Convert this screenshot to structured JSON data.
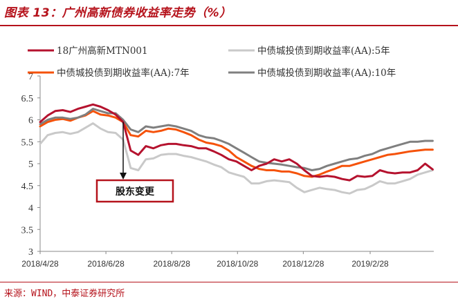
{
  "figure": {
    "title": "图表 13：广州高新债券收益率走势（%）",
    "source": "来源：WIND，中泰证券研究所"
  },
  "chart_data": {
    "type": "line",
    "title": "",
    "xlabel": "",
    "ylabel": "",
    "ylim": [
      3,
      7
    ],
    "yticks": [
      3,
      3.5,
      4,
      4.5,
      5,
      5.5,
      6,
      6.5,
      7
    ],
    "ytick_labels": [
      "3",
      "3.5",
      "4",
      "4.5",
      "5",
      "5.5",
      "6",
      "6.5",
      "7"
    ],
    "xrange": [
      "2018-04-28",
      "2019-04-28"
    ],
    "xticks": [
      "2018/4/28",
      "2018/6/28",
      "2018/8/28",
      "2018/10/28",
      "2018/12/28",
      "2019/2/28"
    ],
    "x": [
      "2018-04-28",
      "2018-05-05",
      "2018-05-12",
      "2018-05-19",
      "2018-05-26",
      "2018-06-02",
      "2018-06-09",
      "2018-06-16",
      "2018-06-23",
      "2018-06-30",
      "2018-07-07",
      "2018-07-14",
      "2018-07-21",
      "2018-07-28",
      "2018-08-04",
      "2018-08-11",
      "2018-08-18",
      "2018-08-25",
      "2018-09-01",
      "2018-09-08",
      "2018-09-15",
      "2018-09-22",
      "2018-09-29",
      "2018-10-06",
      "2018-10-13",
      "2018-10-20",
      "2018-10-27",
      "2018-11-03",
      "2018-11-10",
      "2018-11-17",
      "2018-11-24",
      "2018-12-01",
      "2018-12-08",
      "2018-12-15",
      "2018-12-22",
      "2018-12-29",
      "2019-01-05",
      "2019-01-12",
      "2019-01-19",
      "2019-01-26",
      "2019-02-02",
      "2019-02-09",
      "2019-02-16",
      "2019-02-23",
      "2019-03-02",
      "2019-03-09",
      "2019-03-16",
      "2019-03-23",
      "2019-03-30",
      "2019-04-06",
      "2019-04-13",
      "2019-04-20",
      "2019-04-27"
    ],
    "series": [
      {
        "name": "18广州高新MTN001",
        "color": "#b5122e",
        "values": [
          5.95,
          6.1,
          6.2,
          6.22,
          6.18,
          6.25,
          6.3,
          6.35,
          6.3,
          6.22,
          6.12,
          5.95,
          5.3,
          5.2,
          5.4,
          5.35,
          5.42,
          5.45,
          5.45,
          5.42,
          5.4,
          5.35,
          5.35,
          5.28,
          5.2,
          5.1,
          5.05,
          4.95,
          4.85,
          4.95,
          5.0,
          5.1,
          5.05,
          5.1,
          5.0,
          4.85,
          4.72,
          4.7,
          4.72,
          4.7,
          4.65,
          4.62,
          4.72,
          4.7,
          4.72,
          4.85,
          4.8,
          4.78,
          4.8,
          4.8,
          4.85,
          5.0,
          4.87
        ]
      },
      {
        "name": "中债城投债到期收益率(AA):5年",
        "color": "#c9c9c9",
        "values": [
          5.45,
          5.65,
          5.7,
          5.72,
          5.68,
          5.72,
          5.82,
          5.92,
          5.8,
          5.72,
          5.7,
          5.55,
          4.9,
          4.85,
          5.1,
          5.12,
          5.2,
          5.22,
          5.22,
          5.18,
          5.15,
          5.1,
          5.05,
          4.98,
          4.92,
          4.8,
          4.75,
          4.7,
          4.55,
          4.55,
          4.6,
          4.62,
          4.6,
          4.58,
          4.45,
          4.35,
          4.4,
          4.45,
          4.42,
          4.4,
          4.35,
          4.32,
          4.4,
          4.42,
          4.5,
          4.6,
          4.55,
          4.55,
          4.6,
          4.65,
          4.75,
          4.8,
          4.85
        ]
      },
      {
        "name": "中债城投债到期收益率(AA):7年",
        "color": "#f5520a",
        "values": [
          5.85,
          5.95,
          6.0,
          6.02,
          5.98,
          6.05,
          6.1,
          6.2,
          6.12,
          6.1,
          6.05,
          5.95,
          5.65,
          5.62,
          5.75,
          5.72,
          5.75,
          5.8,
          5.78,
          5.72,
          5.65,
          5.55,
          5.48,
          5.45,
          5.4,
          5.3,
          5.15,
          5.05,
          4.95,
          4.88,
          4.85,
          4.85,
          4.82,
          4.82,
          4.78,
          4.72,
          4.7,
          4.75,
          4.82,
          4.88,
          4.95,
          4.95,
          5.0,
          5.05,
          5.1,
          5.15,
          5.2,
          5.22,
          5.25,
          5.28,
          5.3,
          5.32,
          5.32
        ]
      },
      {
        "name": "中债城投债到期收益率(AA):10年",
        "color": "#7f7f7f",
        "values": [
          5.9,
          6.0,
          6.05,
          6.05,
          6.02,
          6.05,
          6.12,
          6.25,
          6.2,
          6.15,
          6.15,
          6.0,
          5.78,
          5.72,
          5.85,
          5.82,
          5.85,
          5.88,
          5.85,
          5.8,
          5.75,
          5.65,
          5.6,
          5.58,
          5.52,
          5.45,
          5.35,
          5.25,
          5.15,
          5.05,
          5.02,
          5.0,
          4.98,
          4.95,
          4.92,
          4.9,
          4.85,
          4.88,
          4.95,
          5.0,
          5.05,
          5.1,
          5.12,
          5.18,
          5.22,
          5.3,
          5.35,
          5.4,
          5.45,
          5.5,
          5.5,
          5.52,
          5.52
        ]
      }
    ],
    "legend_position": "top",
    "annotation": {
      "text": "股东变更",
      "at": "2018-07-14",
      "arrow": true
    },
    "grid": false
  }
}
